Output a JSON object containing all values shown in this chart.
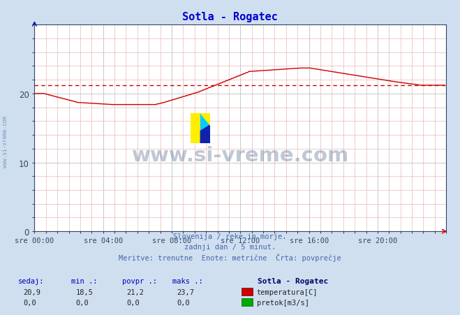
{
  "title": "Sotla - Rogatec",
  "title_color": "#0000cc",
  "bg_color": "#d0dff0",
  "plot_bg_color": "#ffffff",
  "grid_color_major": "#c8c8c8",
  "grid_color_minor": "#e8b8b8",
  "xlim": [
    0,
    288
  ],
  "ylim": [
    0,
    30
  ],
  "yticks": [
    0,
    10,
    20
  ],
  "xtick_labels": [
    "sre 00:00",
    "sre 04:00",
    "sre 08:00",
    "sre 12:00",
    "sre 16:00",
    "sre 20:00"
  ],
  "xtick_positions": [
    0,
    48,
    96,
    144,
    192,
    240
  ],
  "avg_value": 21.2,
  "avg_color": "#cc0000",
  "temp_color": "#cc0000",
  "watermark_text": "www.si-vreme.com",
  "watermark_color": "#1a3a6a",
  "watermark_alpha": 0.28,
  "subtitle_lines": [
    "Slovenija / reke in morje.",
    "zadnji dan / 5 minut.",
    "Meritve: trenutne  Enote: metrične  Črta: povprečje"
  ],
  "subtitle_color": "#4466aa",
  "footer_label_color": "#0000bb",
  "sedaj": "20,9",
  "min_val": "18,5",
  "povpr": "21,2",
  "maks": "23,7",
  "legend_station": "Sotla - Rogatec",
  "legend_temp_label": "temperatura[C]",
  "legend_flow_label": "pretok[m3/s]",
  "legend_temp_color": "#cc0000",
  "legend_flow_color": "#00aa00",
  "axis_color": "#004488",
  "tick_color": "#334466",
  "spine_color": "#334466",
  "left_text": "www.si-vreme.com",
  "left_text_color": "#7799bb"
}
